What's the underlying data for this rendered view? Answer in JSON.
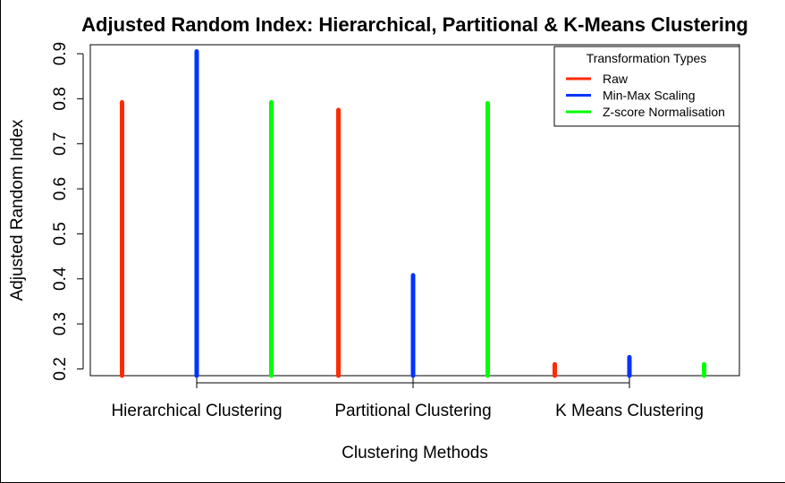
{
  "chart_data": {
    "type": "bar",
    "title": "Adjusted Random Index: Hierarchical, Partitional & K-Means Clustering",
    "xlabel": "Clustering Methods",
    "ylabel": "Adjusted Random Index",
    "categories": [
      "Hierarchical Clustering",
      "Partitional Clustering",
      "K Means Clustering"
    ],
    "yticks": [
      "0.2",
      "0.3",
      "0.4",
      "0.5",
      "0.6",
      "0.7",
      "0.8",
      "0.9"
    ],
    "ylim": [
      0.185,
      0.92
    ],
    "grid": false,
    "legend": {
      "title": "Transformation Types",
      "placement": "top-right"
    },
    "series": [
      {
        "name": "Raw",
        "color": "#ff2a00",
        "values": [
          0.792,
          0.775,
          0.21
        ]
      },
      {
        "name": "Min-Max Scaling",
        "color": "#0033ff",
        "values": [
          0.905,
          0.408,
          0.226
        ]
      },
      {
        "name": "Z-score Normalisation",
        "color": "#00ff00",
        "values": [
          0.792,
          0.79,
          0.21
        ]
      }
    ]
  }
}
